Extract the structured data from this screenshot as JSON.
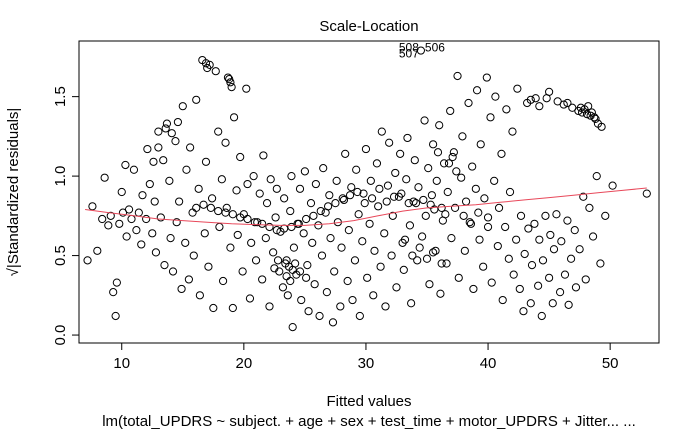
{
  "chart_data": {
    "type": "scatter",
    "title": "Scale-Location",
    "xlabel": "Fitted values",
    "ylabel": "√|Standardized residuals|",
    "caption": "lm(total_UPDRS ~ subject. + age + sex + test_time + motor_UPDRS + Jitter... ...",
    "xlim": [
      6.5,
      54
    ],
    "ylim": [
      -0.05,
      1.85
    ],
    "xticks": [
      10,
      20,
      30,
      40,
      50
    ],
    "yticks": [
      0.0,
      0.5,
      1.0,
      1.5
    ],
    "ytick_labels": [
      "0.0",
      "0.5",
      "1.0",
      "1.5"
    ],
    "grid": false,
    "marker": "open circle",
    "point_color": "#000000",
    "smooth_color": "#e8485a",
    "smooth": {
      "x": [
        7,
        9,
        11,
        13,
        15,
        17,
        19,
        21,
        23,
        25,
        27,
        29,
        31,
        33,
        35,
        37,
        39,
        41,
        43,
        45,
        47,
        49,
        51,
        53
      ],
      "y": [
        0.79,
        0.77,
        0.75,
        0.73,
        0.72,
        0.71,
        0.7,
        0.695,
        0.69,
        0.69,
        0.7,
        0.72,
        0.75,
        0.78,
        0.8,
        0.81,
        0.82,
        0.835,
        0.85,
        0.865,
        0.88,
        0.895,
        0.91,
        0.925
      ]
    },
    "outlier_labels": [
      "508",
      "506",
      "507"
    ],
    "points": [
      [
        7.2,
        0.47
      ],
      [
        7.6,
        0.81
      ],
      [
        8.0,
        0.53
      ],
      [
        8.4,
        0.73
      ],
      [
        8.6,
        0.99
      ],
      [
        8.9,
        0.69
      ],
      [
        9.1,
        0.75
      ],
      [
        9.3,
        0.27
      ],
      [
        9.5,
        0.12
      ],
      [
        9.6,
        0.33
      ],
      [
        9.8,
        0.7
      ],
      [
        10.0,
        0.9
      ],
      [
        10.1,
        0.77
      ],
      [
        10.3,
        1.07
      ],
      [
        10.4,
        0.62
      ],
      [
        10.6,
        0.79
      ],
      [
        10.8,
        0.73
      ],
      [
        11.0,
        1.04
      ],
      [
        11.2,
        0.66
      ],
      [
        11.4,
        0.77
      ],
      [
        11.6,
        0.57
      ],
      [
        11.7,
        0.88
      ],
      [
        12.0,
        0.73
      ],
      [
        12.1,
        1.17
      ],
      [
        12.3,
        0.95
      ],
      [
        12.5,
        0.64
      ],
      [
        12.7,
        0.84
      ],
      [
        12.8,
        0.52
      ],
      [
        13.0,
        1.28
      ],
      [
        13.2,
        0.74
      ],
      [
        13.4,
        1.1
      ],
      [
        13.5,
        0.44
      ],
      [
        13.7,
        1.33
      ],
      [
        13.9,
        0.97
      ],
      [
        14.0,
        0.61
      ],
      [
        14.2,
        0.4
      ],
      [
        14.4,
        1.22
      ],
      [
        14.5,
        0.71
      ],
      [
        14.7,
        0.84
      ],
      [
        14.9,
        0.29
      ],
      [
        15.0,
        1.44
      ],
      [
        15.2,
        0.58
      ],
      [
        15.3,
        1.04
      ],
      [
        15.5,
        0.35
      ],
      [
        15.6,
        1.18
      ],
      [
        15.8,
        0.77
      ],
      [
        15.9,
        0.5
      ],
      [
        16.1,
        1.48
      ],
      [
        16.3,
        0.92
      ],
      [
        16.4,
        0.25
      ],
      [
        16.6,
        1.73
      ],
      [
        16.8,
        0.64
      ],
      [
        16.9,
        1.09
      ],
      [
        17.1,
        0.43
      ],
      [
        17.2,
        1.7
      ],
      [
        17.4,
        0.86
      ],
      [
        17.5,
        0.17
      ],
      [
        17.7,
        1.66
      ],
      [
        17.9,
        1.28
      ],
      [
        18.0,
        0.68
      ],
      [
        18.2,
        0.98
      ],
      [
        18.3,
        0.34
      ],
      [
        18.5,
        1.21
      ],
      [
        18.6,
        0.8
      ],
      [
        18.8,
        1.61
      ],
      [
        18.9,
        0.55
      ],
      [
        19.1,
        0.17
      ],
      [
        19.2,
        1.37
      ],
      [
        19.4,
        0.91
      ],
      [
        19.5,
        0.63
      ],
      [
        19.7,
        1.12
      ],
      [
        19.9,
        0.4
      ],
      [
        20.0,
        0.76
      ],
      [
        20.2,
        1.55
      ],
      [
        20.3,
        0.95
      ],
      [
        20.5,
        0.23
      ],
      [
        20.6,
        0.58
      ],
      [
        20.8,
        1.0
      ],
      [
        21.0,
        0.47
      ],
      [
        21.1,
        0.71
      ],
      [
        21.3,
        0.89
      ],
      [
        21.5,
        0.35
      ],
      [
        21.6,
        1.13
      ],
      [
        21.8,
        0.61
      ],
      [
        21.9,
        0.83
      ],
      [
        22.1,
        0.18
      ],
      [
        22.2,
        0.98
      ],
      [
        22.4,
        0.52
      ],
      [
        22.6,
        0.74
      ],
      [
        22.7,
        0.92
      ],
      [
        22.9,
        0.4
      ],
      [
        23.0,
        0.65
      ],
      [
        23.2,
        0.3
      ],
      [
        23.3,
        0.86
      ],
      [
        23.5,
        0.47
      ],
      [
        23.6,
        0.25
      ],
      [
        23.8,
        0.78
      ],
      [
        23.9,
        1.0
      ],
      [
        24.0,
        0.05
      ],
      [
        24.1,
        0.55
      ],
      [
        24.3,
        0.38
      ],
      [
        24.4,
        0.7
      ],
      [
        24.6,
        0.92
      ],
      [
        24.7,
        0.22
      ],
      [
        24.9,
        0.64
      ],
      [
        25.0,
        1.03
      ],
      [
        25.2,
        0.44
      ],
      [
        25.3,
        0.15
      ],
      [
        25.5,
        0.83
      ],
      [
        25.6,
        0.58
      ],
      [
        25.8,
        0.32
      ],
      [
        25.9,
        0.95
      ],
      [
        26.1,
        0.69
      ],
      [
        26.2,
        0.12
      ],
      [
        26.4,
        0.5
      ],
      [
        26.5,
        1.05
      ],
      [
        26.7,
        0.77
      ],
      [
        26.8,
        0.27
      ],
      [
        27.0,
        0.88
      ],
      [
        27.1,
        0.61
      ],
      [
        27.3,
        0.08
      ],
      [
        27.4,
        0.4
      ],
      [
        27.6,
        0.97
      ],
      [
        27.7,
        0.71
      ],
      [
        27.9,
        0.18
      ],
      [
        28.0,
        0.55
      ],
      [
        28.2,
        0.85
      ],
      [
        28.3,
        1.14
      ],
      [
        28.5,
        0.34
      ],
      [
        28.6,
        0.66
      ],
      [
        28.8,
        0.93
      ],
      [
        28.9,
        0.22
      ],
      [
        29.1,
        0.47
      ],
      [
        29.2,
        1.04
      ],
      [
        29.4,
        0.76
      ],
      [
        29.5,
        0.12
      ],
      [
        29.7,
        0.59
      ],
      [
        29.8,
        0.89
      ],
      [
        30.0,
        1.17
      ],
      [
        30.1,
        0.36
      ],
      [
        30.3,
        0.7
      ],
      [
        30.4,
        0.97
      ],
      [
        30.6,
        0.25
      ],
      [
        30.7,
        0.53
      ],
      [
        30.9,
        1.08
      ],
      [
        31.0,
        0.81
      ],
      [
        31.2,
        0.43
      ],
      [
        31.3,
        1.28
      ],
      [
        31.5,
        0.64
      ],
      [
        31.6,
        0.18
      ],
      [
        31.8,
        0.94
      ],
      [
        31.9,
        1.21
      ],
      [
        32.1,
        0.5
      ],
      [
        32.2,
        0.75
      ],
      [
        32.4,
        1.02
      ],
      [
        32.5,
        0.3
      ],
      [
        32.7,
        0.87
      ],
      [
        32.8,
        1.14
      ],
      [
        33.0,
        0.58
      ],
      [
        33.1,
        0.41
      ],
      [
        33.3,
        0.98
      ],
      [
        33.4,
        1.24
      ],
      [
        33.6,
        0.69
      ],
      [
        33.7,
        0.2
      ],
      [
        33.9,
        0.84
      ],
      [
        34.0,
        1.1
      ],
      [
        34.2,
        0.47
      ],
      [
        34.3,
        0.93
      ],
      [
        34.5,
        1.79
      ],
      [
        34.6,
        0.62
      ],
      [
        34.8,
        1.35
      ],
      [
        34.9,
        0.75
      ],
      [
        35.1,
        1.05
      ],
      [
        35.2,
        0.32
      ],
      [
        35.4,
        0.88
      ],
      [
        35.5,
        1.2
      ],
      [
        35.7,
        0.53
      ],
      [
        35.8,
        0.97
      ],
      [
        36.0,
        1.32
      ],
      [
        36.1,
        0.26
      ],
      [
        36.3,
        0.72
      ],
      [
        36.4,
        1.08
      ],
      [
        36.6,
        0.45
      ],
      [
        36.7,
        0.9
      ],
      [
        36.9,
        1.41
      ],
      [
        37.0,
        0.61
      ],
      [
        37.2,
        1.15
      ],
      [
        37.3,
        0.8
      ],
      [
        37.5,
        1.63
      ],
      [
        37.6,
        0.36
      ],
      [
        37.8,
        0.99
      ],
      [
        37.9,
        1.25
      ],
      [
        38.1,
        0.53
      ],
      [
        38.2,
        0.84
      ],
      [
        38.4,
        1.46
      ],
      [
        38.5,
        0.71
      ],
      [
        38.7,
        1.06
      ],
      [
        38.8,
        0.29
      ],
      [
        39.0,
        0.92
      ],
      [
        39.1,
        1.54
      ],
      [
        39.3,
        0.6
      ],
      [
        39.4,
        1.2
      ],
      [
        39.6,
        0.43
      ],
      [
        39.7,
        0.86
      ],
      [
        39.9,
        1.62
      ],
      [
        40.0,
        0.74
      ],
      [
        40.2,
        1.37
      ],
      [
        40.3,
        0.33
      ],
      [
        40.5,
        0.97
      ],
      [
        40.6,
        1.5
      ],
      [
        40.8,
        0.56
      ],
      [
        40.9,
        0.8
      ],
      [
        41.1,
        1.14
      ],
      [
        41.2,
        0.22
      ],
      [
        41.4,
        0.68
      ],
      [
        41.5,
        1.42
      ],
      [
        41.7,
        0.48
      ],
      [
        41.8,
        0.9
      ],
      [
        42.0,
        1.28
      ],
      [
        42.1,
        0.38
      ],
      [
        42.3,
        0.6
      ],
      [
        42.4,
        1.55
      ],
      [
        42.6,
        0.29
      ],
      [
        42.7,
        0.75
      ],
      [
        42.9,
        0.15
      ],
      [
        43.0,
        0.51
      ],
      [
        43.2,
        1.46
      ],
      [
        43.3,
        0.67
      ],
      [
        43.5,
        0.2
      ],
      [
        43.6,
        0.44
      ],
      [
        43.8,
        0.7
      ],
      [
        43.9,
        1.49
      ],
      [
        44.1,
        0.31
      ],
      [
        44.2,
        0.6
      ],
      [
        44.4,
        0.12
      ],
      [
        44.5,
        0.47
      ],
      [
        44.7,
        0.75
      ],
      [
        44.8,
        1.49
      ],
      [
        45.0,
        0.36
      ],
      [
        45.1,
        0.63
      ],
      [
        45.3,
        0.2
      ],
      [
        45.4,
        0.54
      ],
      [
        45.6,
        0.76
      ],
      [
        45.7,
        1.47
      ],
      [
        45.9,
        0.27
      ],
      [
        46.0,
        0.59
      ],
      [
        46.2,
        1.45
      ],
      [
        46.3,
        0.38
      ],
      [
        46.5,
        0.72
      ],
      [
        46.6,
        0.19
      ],
      [
        46.8,
        0.48
      ],
      [
        46.9,
        1.43
      ],
      [
        47.1,
        0.66
      ],
      [
        47.2,
        0.3
      ],
      [
        47.4,
        1.41
      ],
      [
        47.5,
        0.54
      ],
      [
        47.7,
        1.4
      ],
      [
        47.8,
        0.87
      ],
      [
        48.0,
        0.35
      ],
      [
        48.1,
        1.39
      ],
      [
        48.3,
        0.8
      ],
      [
        48.4,
        1.38
      ],
      [
        48.6,
        0.62
      ],
      [
        48.7,
        1.37
      ],
      [
        48.9,
        1.0
      ],
      [
        49.0,
        1.33
      ],
      [
        49.2,
        0.45
      ],
      [
        49.3,
        1.31
      ],
      [
        49.6,
        0.75
      ],
      [
        50.2,
        0.94
      ],
      [
        53.0,
        0.89
      ],
      [
        47.9,
        1.42
      ],
      [
        48.2,
        1.44
      ],
      [
        48.5,
        1.4
      ],
      [
        47.6,
        1.43
      ],
      [
        48.8,
        1.36
      ],
      [
        46.5,
        1.46
      ],
      [
        45.0,
        1.53
      ],
      [
        44.2,
        1.44
      ],
      [
        43.5,
        1.48
      ],
      [
        36.8,
        1.08
      ],
      [
        37.1,
        1.12
      ],
      [
        37.4,
        1.03
      ],
      [
        35.9,
        1.15
      ],
      [
        36.2,
        0.8
      ],
      [
        36.5,
        0.76
      ],
      [
        35.3,
        0.82
      ],
      [
        35.6,
        0.79
      ],
      [
        34.7,
        0.85
      ],
      [
        34.1,
        0.83
      ],
      [
        33.5,
        0.83
      ],
      [
        32.9,
        0.89
      ],
      [
        32.3,
        0.87
      ],
      [
        31.7,
        0.84
      ],
      [
        31.1,
        0.92
      ],
      [
        30.5,
        0.86
      ],
      [
        29.9,
        0.83
      ],
      [
        29.3,
        0.9
      ],
      [
        28.7,
        0.88
      ],
      [
        28.1,
        0.86
      ],
      [
        27.5,
        0.83
      ],
      [
        26.9,
        0.81
      ],
      [
        26.3,
        0.78
      ],
      [
        25.7,
        0.75
      ],
      [
        25.1,
        0.73
      ],
      [
        24.5,
        0.7
      ],
      [
        23.9,
        0.68
      ],
      [
        23.3,
        0.67
      ],
      [
        22.7,
        0.66
      ],
      [
        22.1,
        0.68
      ],
      [
        21.5,
        0.7
      ],
      [
        20.9,
        0.71
      ],
      [
        20.3,
        0.73
      ],
      [
        19.7,
        0.74
      ],
      [
        19.1,
        0.76
      ],
      [
        18.5,
        0.77
      ],
      [
        17.9,
        0.78
      ],
      [
        17.3,
        0.8
      ],
      [
        16.7,
        0.82
      ],
      [
        16.1,
        0.8
      ],
      [
        23.4,
        0.45
      ],
      [
        23.7,
        0.43
      ],
      [
        24.0,
        0.41
      ],
      [
        23.5,
        0.37
      ],
      [
        23.8,
        0.34
      ],
      [
        24.2,
        0.45
      ],
      [
        22.8,
        0.47
      ],
      [
        22.5,
        0.42
      ],
      [
        24.6,
        0.4
      ],
      [
        25.1,
        0.36
      ],
      [
        33.8,
        0.5
      ],
      [
        34.4,
        0.55
      ],
      [
        35.0,
        0.48
      ],
      [
        35.5,
        0.52
      ],
      [
        36.2,
        0.45
      ],
      [
        33.2,
        0.6
      ],
      [
        38.0,
        0.75
      ],
      [
        38.6,
        0.7
      ],
      [
        39.2,
        0.77
      ],
      [
        40.0,
        0.68
      ],
      [
        18.7,
        1.62
      ],
      [
        18.9,
        1.59
      ],
      [
        19.0,
        1.56
      ],
      [
        17.0,
        1.68
      ],
      [
        16.9,
        1.71
      ],
      [
        14.6,
        1.34
      ],
      [
        14.1,
        1.27
      ],
      [
        13.6,
        1.3
      ],
      [
        13.0,
        1.18
      ],
      [
        12.6,
        1.09
      ]
    ]
  }
}
